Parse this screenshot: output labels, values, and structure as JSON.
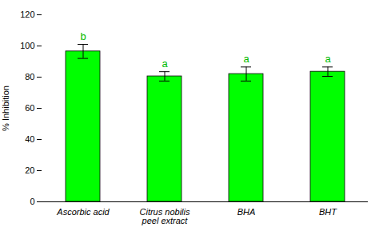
{
  "chart_data": {
    "type": "bar",
    "categories": [
      "Ascorbic acid",
      "Citrus nobilis\npeel extract",
      "BHA",
      "BHT"
    ],
    "values": [
      96.5,
      80.5,
      82.0,
      83.5
    ],
    "errors": [
      4.5,
      3.0,
      4.5,
      3.0
    ],
    "letter_labels": [
      "b",
      "a",
      "a",
      "a"
    ],
    "color": "#00FF00",
    "ylabel": "% Inhibition",
    "ylim": [
      0,
      120
    ],
    "yticks": [
      0,
      20,
      40,
      60,
      80,
      100,
      120
    ],
    "grid": false
  }
}
